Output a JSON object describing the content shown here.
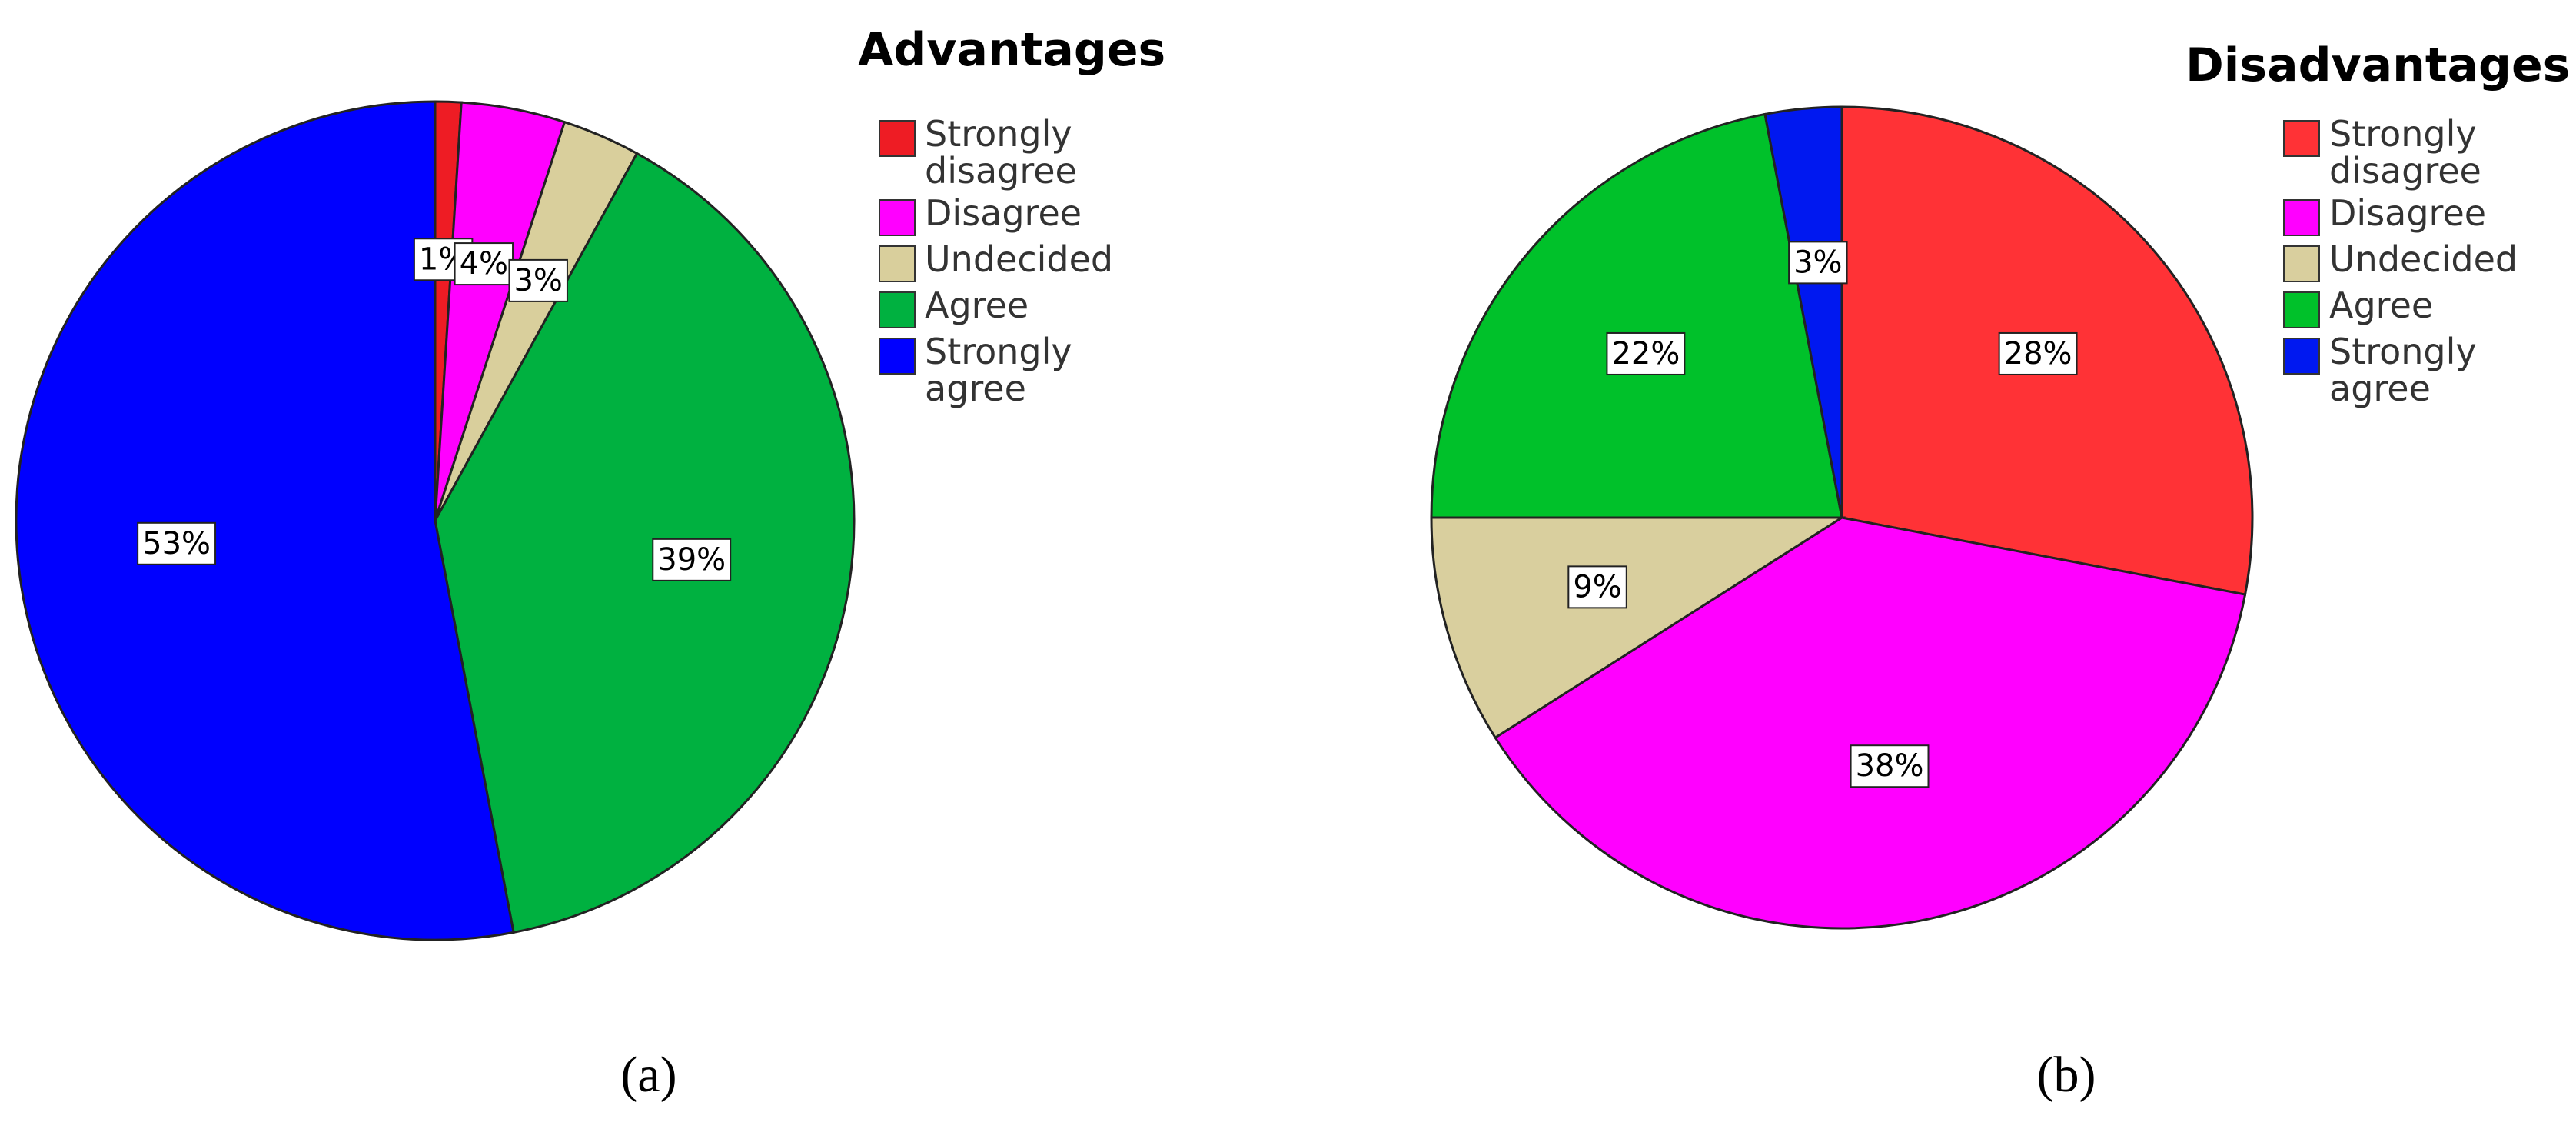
{
  "chart_data": [
    {
      "type": "pie",
      "title": "Advantages",
      "caption": "(a)",
      "categories": [
        "Strongly disagree",
        "Disagree",
        "Undecided",
        "Agree",
        "Strongly agree"
      ],
      "values": [
        1,
        4,
        3,
        39,
        53
      ],
      "value_labels": [
        "1%",
        "4%",
        "3%",
        "39%",
        "53%"
      ],
      "colors": [
        "#ee1c24",
        "#ff00ff",
        "#d9cf9c",
        "#00b140",
        "#0000ff"
      ]
    },
    {
      "type": "pie",
      "title": "Disadvantages",
      "caption": "(b)",
      "categories": [
        "Strongly disagree",
        "Disagree",
        "Undecided",
        "Agree",
        "Strongly agree"
      ],
      "values": [
        28,
        38,
        9,
        22,
        3
      ],
      "value_labels": [
        "28%",
        "38%",
        "9%",
        "22%",
        "3%"
      ],
      "colors": [
        "#ff3236",
        "#ff00ff",
        "#d9cf9e",
        "#00c12a",
        "#0018f0"
      ]
    }
  ]
}
